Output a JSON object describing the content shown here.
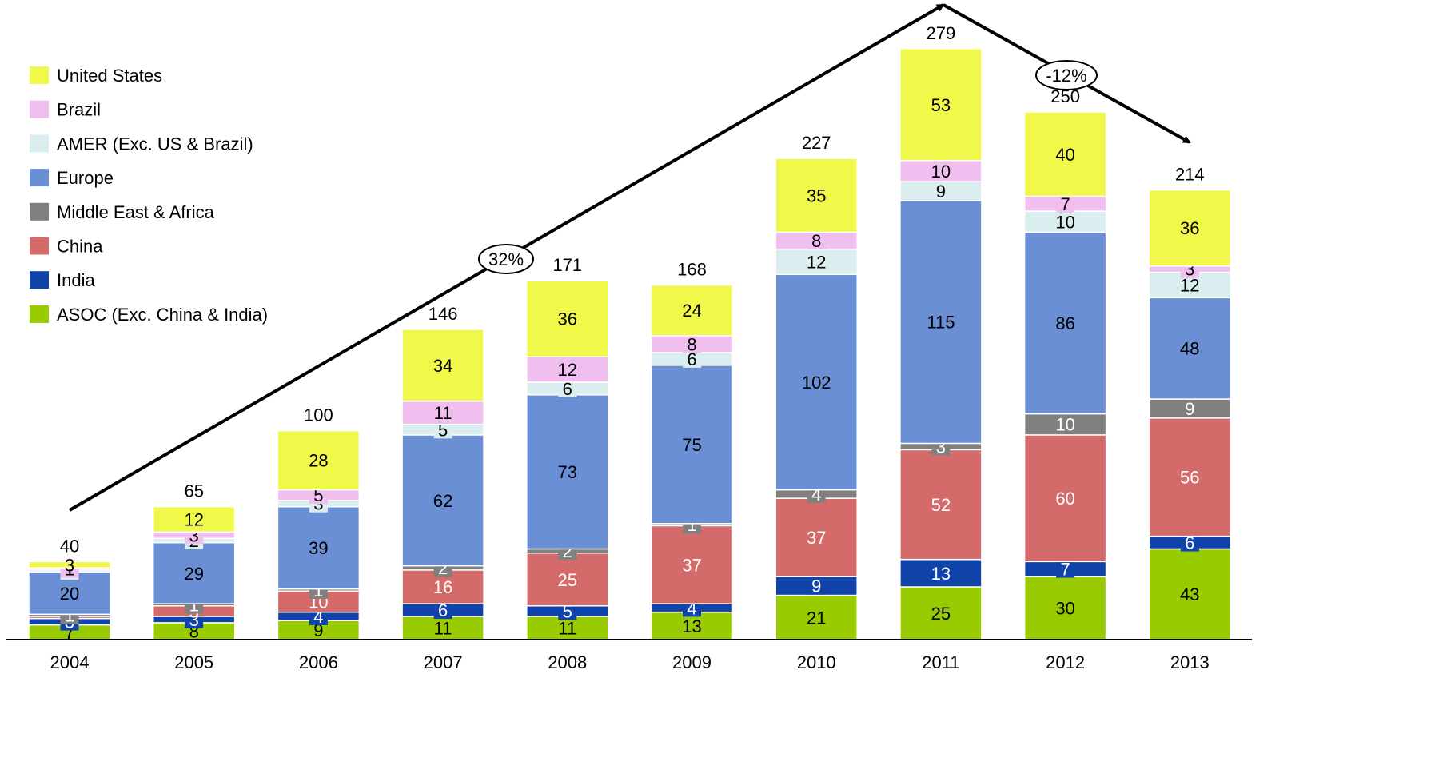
{
  "chart_data": {
    "type": "bar",
    "stacked": true,
    "categories": [
      "2004",
      "2005",
      "2006",
      "2007",
      "2008",
      "2009",
      "2010",
      "2011",
      "2012",
      "2013"
    ],
    "totals": [
      40,
      65,
      100,
      146,
      171,
      168,
      227,
      279,
      250,
      214
    ],
    "series": [
      {
        "name": "ASOC (Exc. China & India)",
        "color": "#99cc00",
        "values": [
          7,
          8,
          9,
          11,
          11,
          13,
          21,
          25,
          30,
          43
        ],
        "label_color": "#000000",
        "label_box": false
      },
      {
        "name": "India",
        "color": "#1144aa",
        "values": [
          3,
          3,
          4,
          6,
          5,
          4,
          9,
          13,
          7,
          6
        ],
        "label_color": "#ffffff",
        "label_box": true
      },
      {
        "name": "China",
        "color": "#d46a6a",
        "values": [
          1,
          5,
          10,
          16,
          25,
          37,
          37,
          52,
          60,
          56
        ],
        "label_color": "#ffffff",
        "label_box": false
      },
      {
        "name": "Middle East & Africa",
        "color": "#808080",
        "values": [
          1,
          1,
          1,
          2,
          2,
          1,
          4,
          3,
          10,
          9
        ],
        "label_color": "#ffffff",
        "label_box": true
      },
      {
        "name": "Europe",
        "color": "#6a8fd4",
        "values": [
          20,
          29,
          39,
          62,
          73,
          75,
          102,
          115,
          86,
          48
        ],
        "label_color": "#000000",
        "label_box": false
      },
      {
        "name": "AMER (Exc. US & Brazil)",
        "color": "#daeef0",
        "values": [
          1,
          2,
          3,
          5,
          6,
          6,
          12,
          9,
          10,
          12
        ],
        "label_color": "#000000",
        "label_box": true
      },
      {
        "name": "Brazil",
        "color": "#f0bff0",
        "values": [
          1,
          3,
          5,
          11,
          12,
          8,
          8,
          10,
          7,
          3
        ],
        "label_color": "#000000",
        "label_box": true
      },
      {
        "name": "United States",
        "color": "#f0f84a",
        "values": [
          3,
          12,
          28,
          34,
          36,
          24,
          35,
          53,
          40,
          36
        ],
        "label_color": "#000000",
        "label_box": false
      }
    ],
    "legend_order": [
      "United States",
      "Brazil",
      "AMER (Exc. US & Brazil)",
      "Europe",
      "Middle East & Africa",
      "China",
      "India",
      "ASOC (Exc. China & India)"
    ],
    "legend_position": "top-left",
    "annotations": [
      {
        "text": "32%",
        "from_category": "2004",
        "to_category": "2011"
      },
      {
        "text": "-12%",
        "from_category": "2011",
        "to_category": "2013"
      }
    ],
    "grid": false,
    "ylim": [
      0,
      279
    ]
  }
}
